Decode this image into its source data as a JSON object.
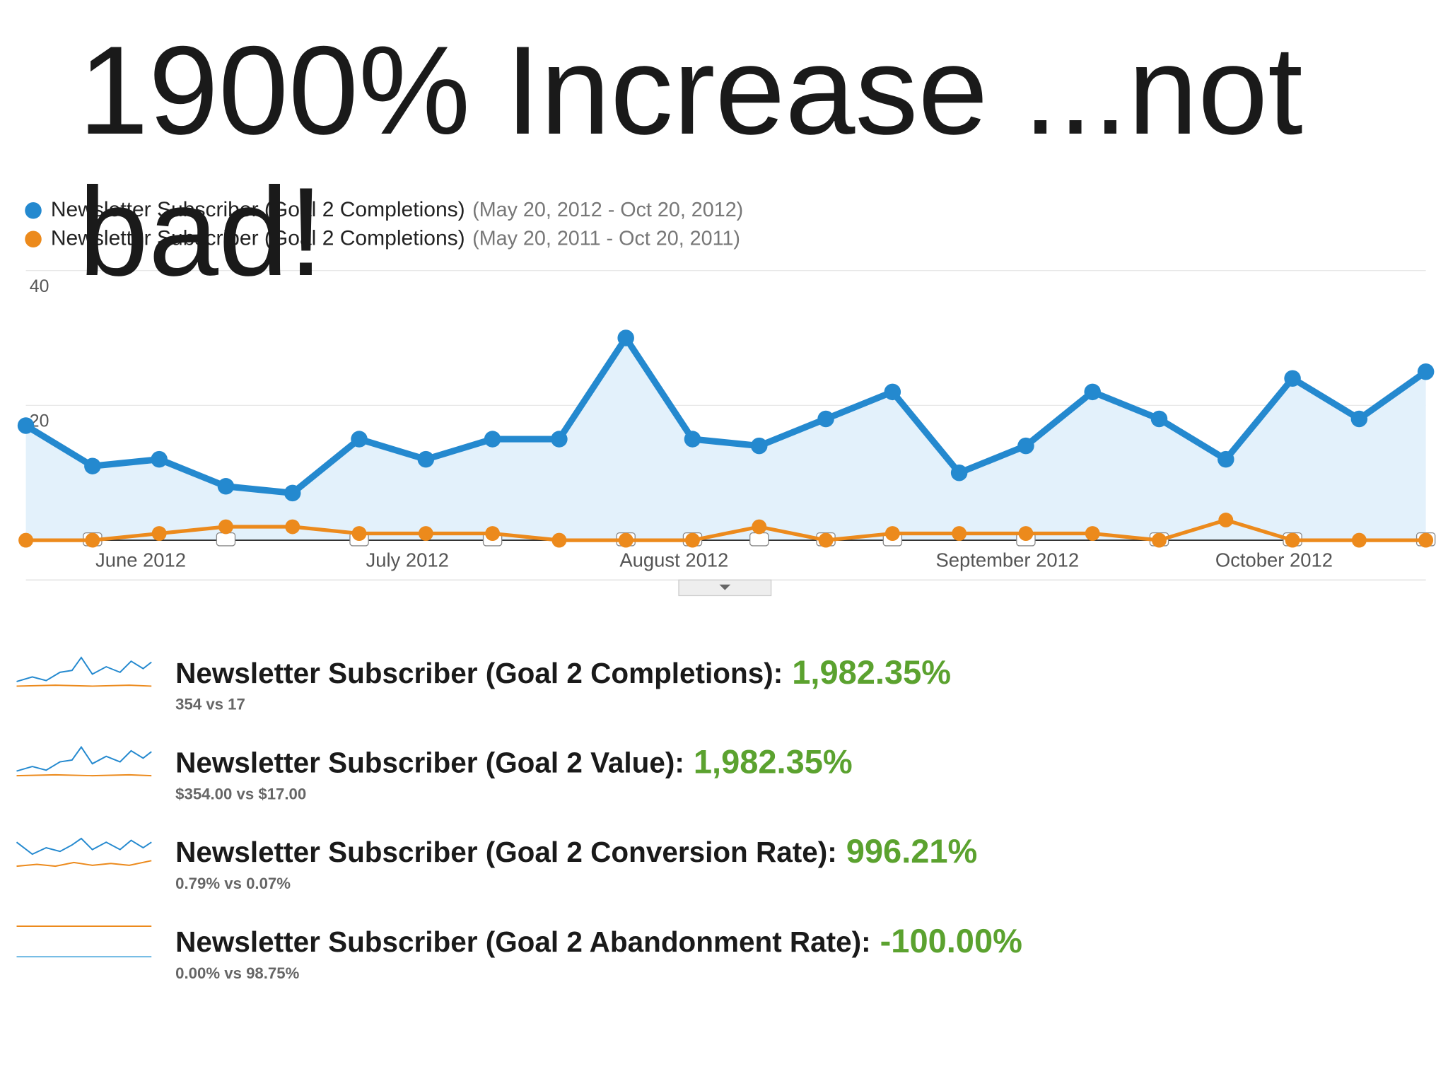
{
  "title": "1900% Increase ...not bad!",
  "chart_data": {
    "type": "line",
    "categories": [
      null,
      null,
      "June 2012",
      null,
      null,
      null,
      "July 2012",
      null,
      null,
      null,
      "August 2012",
      null,
      null,
      null,
      null,
      "September 2012",
      null,
      null,
      null,
      "October 2012",
      null,
      null
    ],
    "series": [
      {
        "name": "Newsletter Subscriber (Goal 2 Completions)",
        "range": "(May 20, 2012 - Oct 20, 2012)",
        "color": "#2489cf",
        "values": [
          17,
          11,
          12,
          8,
          7,
          15,
          12,
          15,
          15,
          30,
          15,
          14,
          18,
          22,
          10,
          14,
          22,
          18,
          12,
          24,
          18,
          25
        ]
      },
      {
        "name": "Newsletter Subscriber (Goal 2 Completions)",
        "range": "(May 20, 2011 - Oct 20, 2011)",
        "color": "#ec8a1c",
        "values": [
          0,
          0,
          1,
          2,
          2,
          1,
          1,
          1,
          0,
          0,
          0,
          2,
          0,
          1,
          1,
          1,
          1,
          0,
          3,
          0,
          0,
          0
        ]
      }
    ],
    "ylim": [
      0,
      40
    ],
    "yticks": [
      20,
      40
    ],
    "grid": true
  },
  "metrics": [
    {
      "label": "Newsletter Subscriber (Goal 2 Completions):",
      "change": "1,982.35%",
      "detail": "354 vs 17"
    },
    {
      "label": "Newsletter Subscriber (Goal 2 Value):",
      "change": "1,982.35%",
      "detail": "$354.00 vs $17.00"
    },
    {
      "label": "Newsletter Subscriber (Goal 2 Conversion Rate):",
      "change": "996.21%",
      "detail": "0.79% vs 0.07%"
    },
    {
      "label": "Newsletter Subscriber (Goal 2 Abandonment Rate):",
      "change": "-100.00%",
      "detail": "0.00% vs 98.75%"
    }
  ]
}
